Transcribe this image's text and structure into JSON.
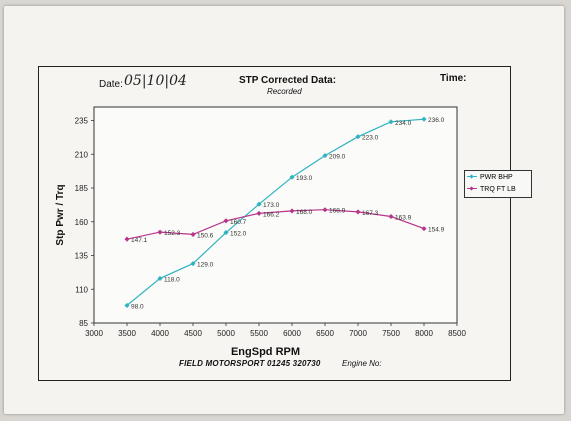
{
  "header": {
    "date_label": "Date:",
    "date_value": "05|10|04",
    "title": "STP Corrected Data:",
    "subtitle": "Recorded",
    "time_label": "Time:"
  },
  "footer": {
    "company": "FIELD MOTORSPORT  01245 320730",
    "engine_label": "Engine No:"
  },
  "colors": {
    "power": "#2fb3c0",
    "torque": "#b8348b"
  },
  "chart_data": {
    "type": "line",
    "xlabel": "EngSpd  RPM",
    "ylabel": "Stp Pwr / Trq",
    "xlim": [
      3000,
      8500
    ],
    "ylim": [
      85,
      245
    ],
    "xticks": [
      3000,
      3500,
      4000,
      4500,
      5000,
      5500,
      6000,
      6500,
      7000,
      7500,
      8000,
      8500
    ],
    "yticks": [
      85,
      110,
      135,
      160,
      185,
      210,
      235
    ],
    "grid": false,
    "legend_position": "right",
    "series": [
      {
        "name": "PWR BHP",
        "color": "#2fb3c0",
        "x": [
          3500,
          4000,
          4500,
          5000,
          5500,
          6000,
          6500,
          7000,
          7500,
          8000
        ],
        "y": [
          98.0,
          118.0,
          129.0,
          152.0,
          173.0,
          193.0,
          209.0,
          223.0,
          234.0,
          236.0
        ],
        "labels": [
          "98.0",
          "118.0",
          "129.0",
          "152.0",
          "173.0",
          "193.0",
          "209.0",
          "223.0",
          "234.0",
          "236.0"
        ]
      },
      {
        "name": "TRQ FT LB",
        "color": "#b8348b",
        "x": [
          3500,
          4000,
          4500,
          5000,
          5500,
          6000,
          6500,
          7000,
          7500,
          8000
        ],
        "y": [
          147.1,
          152.3,
          150.6,
          160.7,
          166.2,
          168.0,
          168.9,
          167.3,
          163.9,
          154.9
        ],
        "labels": [
          "147.1",
          "152.3",
          "150.6",
          "160.7",
          "166.2",
          "168.0",
          "168.9",
          "167.3",
          "163.9",
          "154.9"
        ]
      }
    ]
  }
}
